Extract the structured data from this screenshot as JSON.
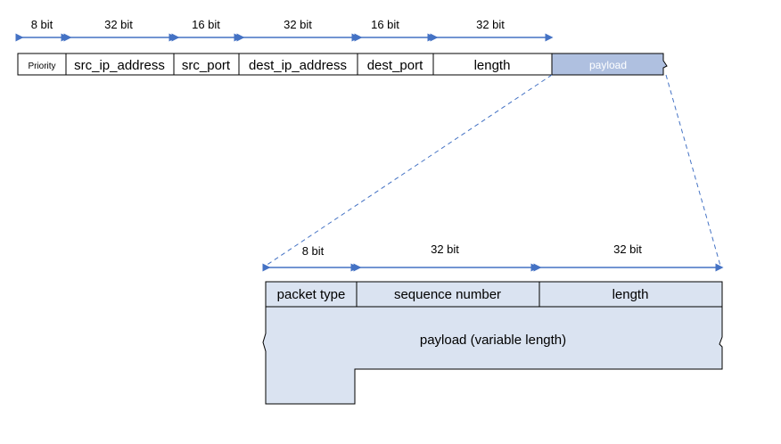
{
  "colors": {
    "arrow": "#4472C4",
    "payload_fill_top": "#AFC0E0",
    "payload_fill_inner": "#DAE3F1",
    "border": "#000000",
    "payload_top_text": "#ffffff"
  },
  "top_packet": {
    "bit_labels": [
      "8 bit",
      "32 bit",
      "16 bit",
      "32 bit",
      "16 bit",
      "32 bit"
    ],
    "fields": [
      "Priority",
      "src_ip_address",
      "src_port",
      "dest_ip_address",
      "dest_port",
      "length"
    ],
    "payload": "payload"
  },
  "inner_packet": {
    "bit_labels": [
      "8 bit",
      "32 bit",
      "32 bit"
    ],
    "fields": [
      "packet type",
      "sequence number",
      "length"
    ],
    "payload": "payload (variable length)"
  }
}
